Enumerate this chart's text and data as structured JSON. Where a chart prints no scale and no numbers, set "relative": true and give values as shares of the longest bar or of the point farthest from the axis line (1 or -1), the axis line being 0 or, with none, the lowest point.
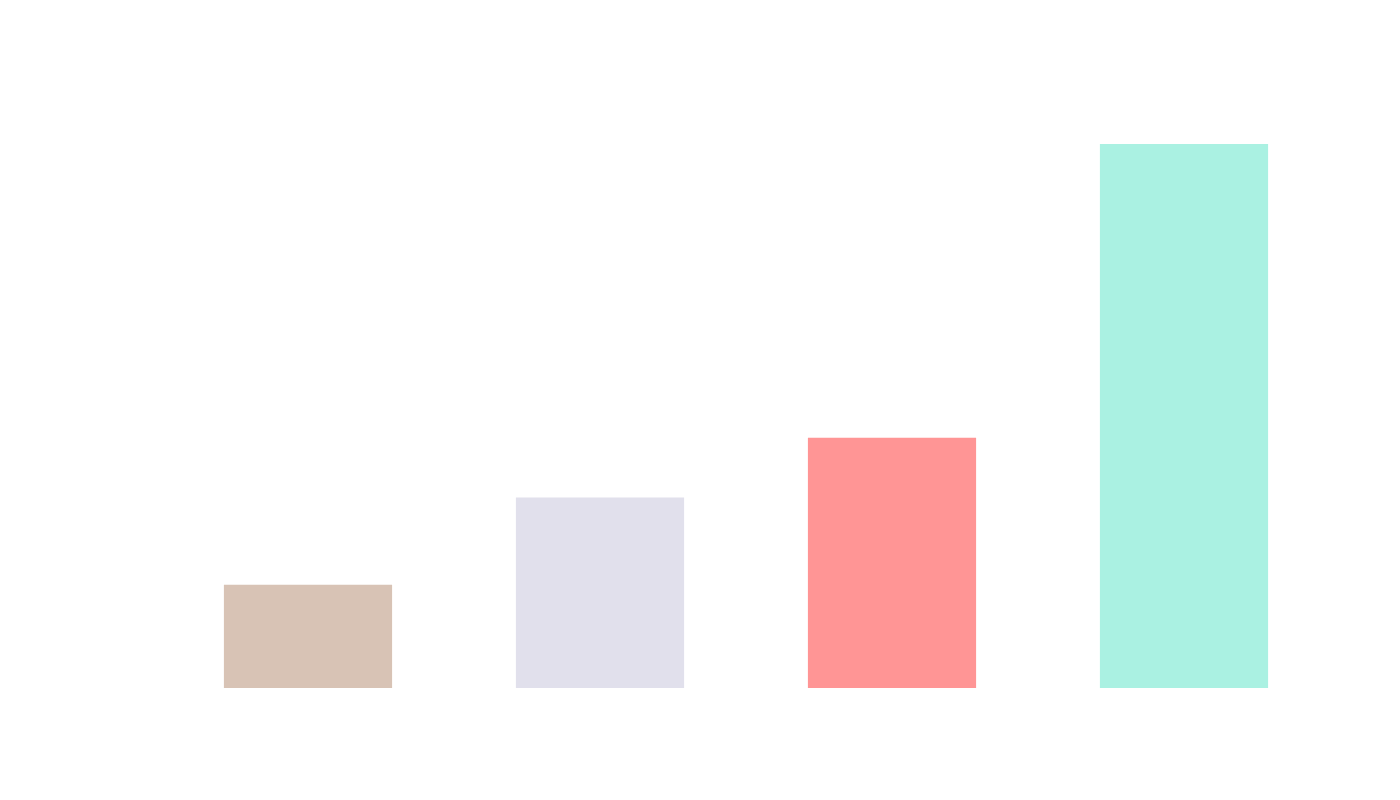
{
  "chart_data": {
    "type": "bar",
    "relative": true,
    "legend": false,
    "categories": [
      null,
      null,
      null,
      null
    ],
    "values": [
      0.19,
      0.35,
      0.46,
      1
    ],
    "colors": [
      "#d8c3b5",
      "#e1e0ec",
      "#ff9595",
      "#aaf1e2"
    ]
  }
}
